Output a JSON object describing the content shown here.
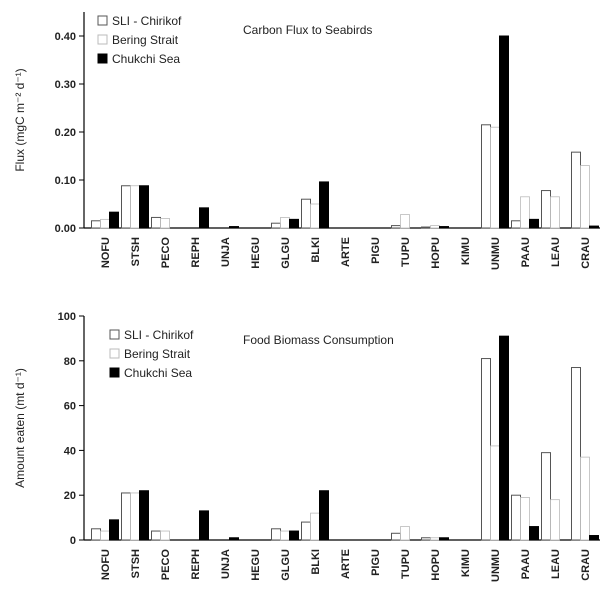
{
  "chart_data": [
    {
      "type": "bar",
      "title": "Carbon Flux to Seabirds",
      "ylabel": "Flux (mgC m⁻² d⁻¹)",
      "ylim": [
        0,
        0.45
      ],
      "yticks": [
        "0.00",
        "0.10",
        "0.20",
        "0.30",
        "0.40"
      ],
      "ytick_values": [
        0,
        0.1,
        0.2,
        0.3,
        0.4
      ],
      "legend_position": "top-left",
      "categories": [
        "NOFU",
        "STSH",
        "PECO",
        "REPH",
        "UNJA",
        "HEGU",
        "GLGU",
        "BLKI",
        "ARTE",
        "PIGU",
        "TUPU",
        "HOPU",
        "KIMU",
        "UNMU",
        "PAAU",
        "LEAU",
        "CRAU"
      ],
      "series": [
        {
          "name": "SLI - Chirikof",
          "color": "#ffffff",
          "values": [
            0.015,
            0.088,
            0.022,
            0,
            0,
            0,
            0.01,
            0.06,
            0,
            0,
            0.005,
            0.002,
            0,
            0.215,
            0.015,
            0.078,
            0.158
          ]
        },
        {
          "name": "Bering Strait",
          "color": "#ffffff",
          "values": [
            0.018,
            0.088,
            0.02,
            0,
            0,
            0,
            0.022,
            0.05,
            0,
            0,
            0.028,
            0.005,
            0,
            0.21,
            0.065,
            0.065,
            0.13
          ]
        },
        {
          "name": "Chukchi Sea",
          "color": "#000000",
          "values": [
            0.033,
            0.088,
            0,
            0.042,
            0.003,
            0,
            0.018,
            0.096,
            0,
            0,
            0,
            0.003,
            0,
            0.4,
            0.018,
            0,
            0.004
          ]
        }
      ]
    },
    {
      "type": "bar",
      "title": "Food Biomass Consumption",
      "ylabel": "Amount eaten (mt d⁻¹)",
      "ylim": [
        0,
        100
      ],
      "yticks": [
        "0",
        "20",
        "40",
        "60",
        "80",
        "100"
      ],
      "ytick_values": [
        0,
        20,
        40,
        60,
        80,
        100
      ],
      "legend_position": "top-left",
      "categories": [
        "NOFU",
        "STSH",
        "PECO",
        "REPH",
        "UNJA",
        "HEGU",
        "GLGU",
        "BLKI",
        "ARTE",
        "PIGU",
        "TUPU",
        "HOPU",
        "KIMU",
        "UNMU",
        "PAAU",
        "LEAU",
        "CRAU"
      ],
      "series": [
        {
          "name": "SLI - Chirikof",
          "color": "#ffffff",
          "values": [
            5,
            21,
            4,
            0,
            0,
            0,
            5,
            8,
            0,
            0,
            3,
            1,
            0,
            81,
            20,
            39,
            77
          ]
        },
        {
          "name": "Bering Strait",
          "color": "#ffffff",
          "values": [
            4,
            21,
            4,
            0,
            0,
            0,
            4,
            12,
            0,
            0,
            6,
            1,
            0,
            42,
            19,
            18,
            37
          ]
        },
        {
          "name": "Chukchi Sea",
          "color": "#000000",
          "values": [
            9,
            22,
            0,
            13,
            1,
            0,
            4,
            22,
            0,
            0,
            0,
            1,
            0,
            91,
            6,
            0,
            2
          ]
        }
      ]
    }
  ]
}
